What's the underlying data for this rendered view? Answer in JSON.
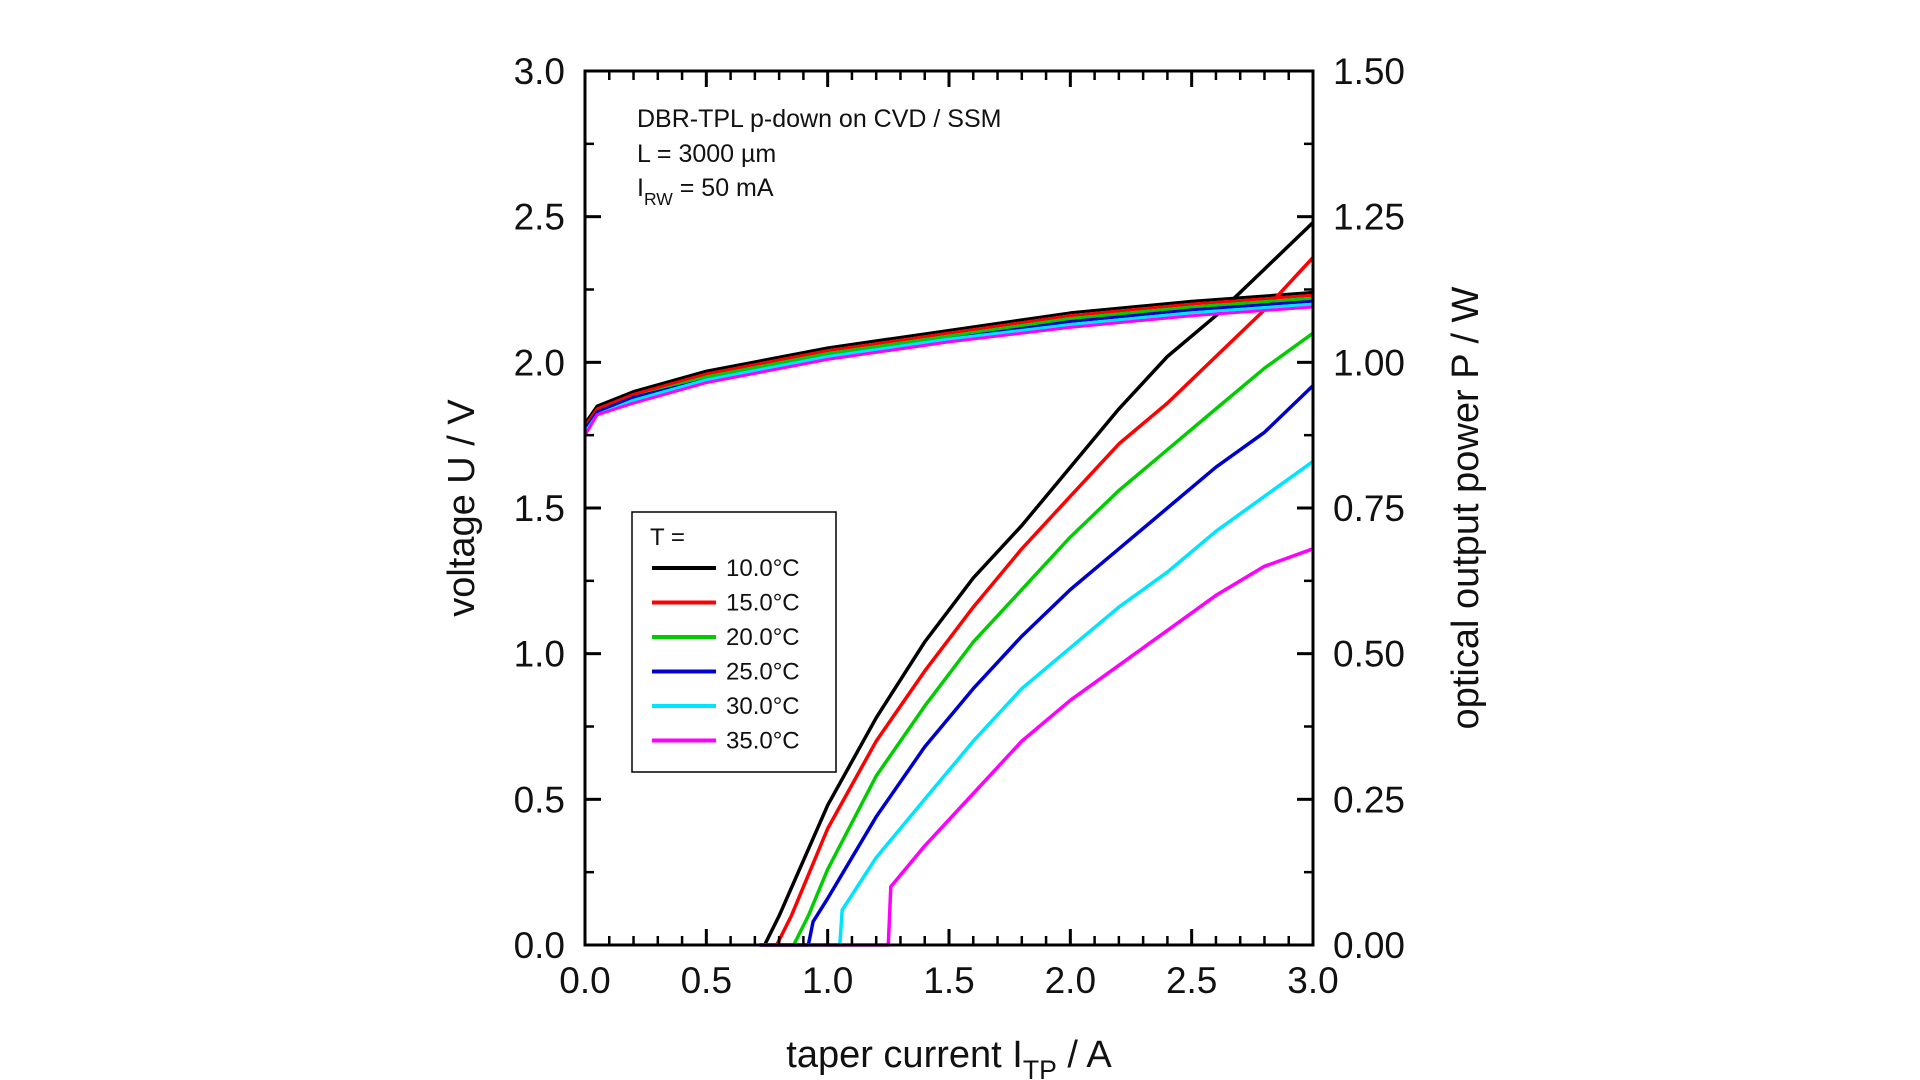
{
  "chart_data": {
    "type": "line",
    "xlabel": "taper current I",
    "xlabel_sub": "TP",
    "xlabel_unit": " / A",
    "ylabel_left": "voltage U / V",
    "ylabel_right": "optical output power P / W",
    "xlim": [
      0,
      3
    ],
    "ylim_left": [
      0,
      3
    ],
    "ylim_right": [
      0,
      1.5
    ],
    "x_ticks": [
      "0.0",
      "0.5",
      "1.0",
      "1.5",
      "2.0",
      "2.5",
      "3.0"
    ],
    "y_ticks_left": [
      "0.0",
      "0.5",
      "1.0",
      "1.5",
      "2.0",
      "2.5",
      "3.0"
    ],
    "y_ticks_right": [
      "0.00",
      "0.25",
      "0.50",
      "0.75",
      "1.00",
      "1.25",
      "1.50"
    ],
    "annotations": {
      "line1": "DBR-TPL p-down on CVD / SSM",
      "line2": "L = 3000 µm",
      "line3_main": "I",
      "line3_sub": "RW",
      "line3_rest": " = 50 mA"
    },
    "legend": {
      "title": "T =",
      "placement": "middle-left"
    },
    "series": [
      {
        "name": "10.0°C",
        "color": "#000000",
        "voltage": {
          "x": [
            0,
            0.05,
            0.2,
            0.5,
            1.0,
            1.5,
            2.0,
            2.5,
            3.0
          ],
          "y": [
            1.79,
            1.85,
            1.9,
            1.97,
            2.05,
            2.11,
            2.17,
            2.21,
            2.24
          ]
        },
        "power": {
          "x": [
            0.74,
            0.8,
            1.0,
            1.2,
            1.4,
            1.6,
            1.8,
            2.0,
            2.2,
            2.4,
            2.6,
            2.8,
            3.0
          ],
          "y": [
            0.0,
            0.05,
            0.24,
            0.39,
            0.52,
            0.63,
            0.72,
            0.82,
            0.92,
            1.01,
            1.08,
            1.16,
            1.24
          ]
        }
      },
      {
        "name": "15.0°C",
        "color": "#ff0000",
        "voltage": {
          "x": [
            0,
            0.05,
            0.2,
            0.5,
            1.0,
            1.5,
            2.0,
            2.5,
            3.0
          ],
          "y": [
            1.78,
            1.84,
            1.89,
            1.96,
            2.04,
            2.1,
            2.16,
            2.2,
            2.23
          ]
        },
        "power": {
          "x": [
            0.79,
            0.85,
            1.0,
            1.2,
            1.4,
            1.6,
            1.8,
            2.0,
            2.2,
            2.4,
            2.6,
            2.8,
            3.0
          ],
          "y": [
            0.0,
            0.05,
            0.2,
            0.35,
            0.47,
            0.58,
            0.68,
            0.77,
            0.86,
            0.93,
            1.01,
            1.09,
            1.18
          ]
        }
      },
      {
        "name": "20.0°C",
        "color": "#00cc00",
        "voltage": {
          "x": [
            0,
            0.05,
            0.2,
            0.5,
            1.0,
            1.5,
            2.0,
            2.5,
            3.0
          ],
          "y": [
            1.77,
            1.83,
            1.88,
            1.95,
            2.03,
            2.09,
            2.15,
            2.19,
            2.22
          ]
        },
        "power": {
          "x": [
            0.86,
            0.92,
            1.0,
            1.2,
            1.4,
            1.6,
            1.8,
            2.0,
            2.2,
            2.4,
            2.6,
            2.8,
            3.0
          ],
          "y": [
            0.0,
            0.05,
            0.13,
            0.29,
            0.41,
            0.52,
            0.61,
            0.7,
            0.78,
            0.85,
            0.92,
            0.99,
            1.05
          ]
        }
      },
      {
        "name": "25.0°C",
        "color": "#0000cc",
        "voltage": {
          "x": [
            0,
            0.05,
            0.2,
            0.5,
            1.0,
            1.5,
            2.0,
            2.5,
            3.0
          ],
          "y": [
            1.77,
            1.83,
            1.88,
            1.94,
            2.02,
            2.08,
            2.14,
            2.18,
            2.21
          ]
        },
        "power": {
          "x": [
            0.92,
            0.94,
            1.0,
            1.2,
            1.4,
            1.6,
            1.8,
            2.0,
            2.2,
            2.4,
            2.6,
            2.8,
            3.0
          ],
          "y": [
            0.0,
            0.04,
            0.08,
            0.22,
            0.34,
            0.44,
            0.53,
            0.61,
            0.68,
            0.75,
            0.82,
            0.88,
            0.96
          ]
        }
      },
      {
        "name": "30.0°C",
        "color": "#00e5ff",
        "voltage": {
          "x": [
            0,
            0.05,
            0.2,
            0.5,
            1.0,
            1.5,
            2.0,
            2.5,
            3.0
          ],
          "y": [
            1.76,
            1.82,
            1.87,
            1.94,
            2.02,
            2.08,
            2.13,
            2.17,
            2.2
          ]
        },
        "power": {
          "x": [
            1.05,
            1.06,
            1.2,
            1.4,
            1.6,
            1.8,
            2.0,
            2.2,
            2.4,
            2.6,
            2.8,
            3.0
          ],
          "y": [
            0.0,
            0.06,
            0.15,
            0.25,
            0.35,
            0.44,
            0.51,
            0.58,
            0.64,
            0.71,
            0.77,
            0.83
          ]
        }
      },
      {
        "name": "35.0°C",
        "color": "#ff00ff",
        "voltage": {
          "x": [
            0,
            0.05,
            0.2,
            0.5,
            1.0,
            1.5,
            2.0,
            2.5,
            3.0
          ],
          "y": [
            1.75,
            1.82,
            1.86,
            1.93,
            2.01,
            2.07,
            2.12,
            2.16,
            2.19
          ]
        },
        "power": {
          "x": [
            1.25,
            1.26,
            1.4,
            1.6,
            1.8,
            2.0,
            2.2,
            2.4,
            2.6,
            2.8,
            3.0
          ],
          "y": [
            0.0,
            0.1,
            0.17,
            0.26,
            0.35,
            0.42,
            0.48,
            0.54,
            0.6,
            0.65,
            0.68
          ]
        }
      }
    ]
  }
}
